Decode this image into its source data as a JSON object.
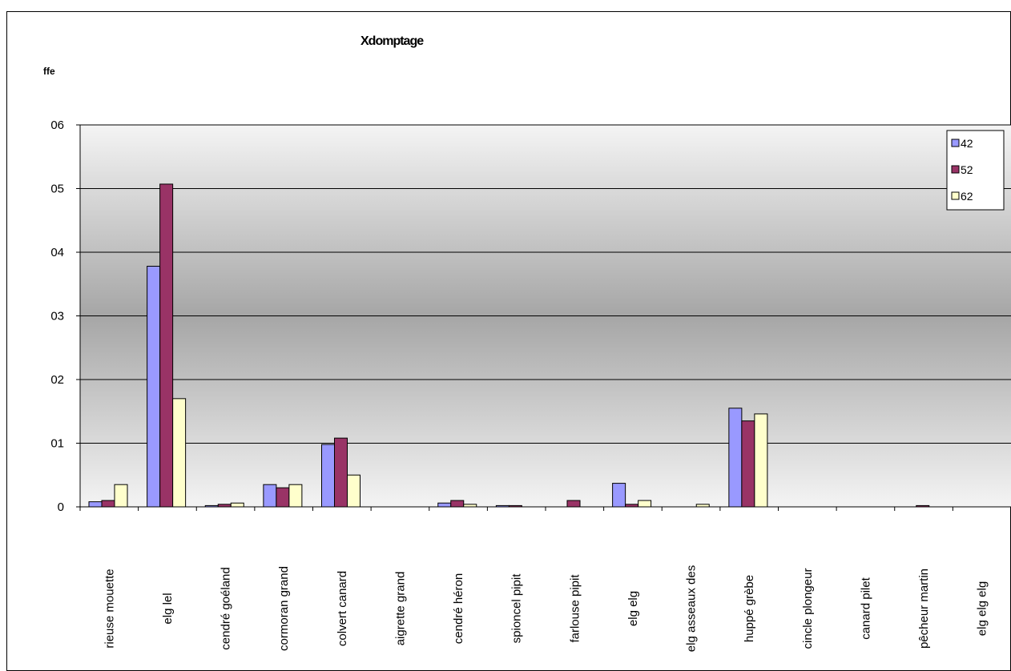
{
  "chart_data": {
    "type": "bar",
    "title": "Xdomptage",
    "ylabel": "ffe",
    "xlabel": "",
    "ylim": [
      0,
      6
    ],
    "y_ticks": [
      "0",
      "01",
      "02",
      "03",
      "04",
      "05",
      "06"
    ],
    "grid": true,
    "legend_position": "top-right",
    "categories": [
      "rieuse mouette",
      "elg lel",
      "cendré goéland",
      "cormoran grand",
      "colvert canard",
      "aigrette grand",
      "cendré héron",
      "spioncel pipit",
      "farlouse pipit",
      "elg elg",
      "elg asseaux des",
      "huppé grèbe",
      "cincle plongeur",
      "canard pilet",
      "pêcheur martin",
      "elg elg elg"
    ],
    "series": [
      {
        "name": "42",
        "color": "#9999ff",
        "values": [
          0.08,
          3.78,
          0.02,
          0.35,
          0.98,
          0,
          0.06,
          0.02,
          0,
          0.37,
          0,
          1.55,
          0,
          0,
          0,
          0
        ]
      },
      {
        "name": "52",
        "color": "#993366",
        "values": [
          0.1,
          5.07,
          0.04,
          0.3,
          1.08,
          0,
          0.1,
          0.02,
          0.1,
          0.04,
          0,
          1.35,
          0,
          0,
          0.02,
          0
        ]
      },
      {
        "name": "62",
        "color": "#ffffcc",
        "values": [
          0.35,
          1.7,
          0.06,
          0.35,
          0.5,
          0,
          0.04,
          0,
          0,
          0.1,
          0.04,
          1.46,
          0,
          0,
          0,
          0
        ]
      }
    ]
  }
}
